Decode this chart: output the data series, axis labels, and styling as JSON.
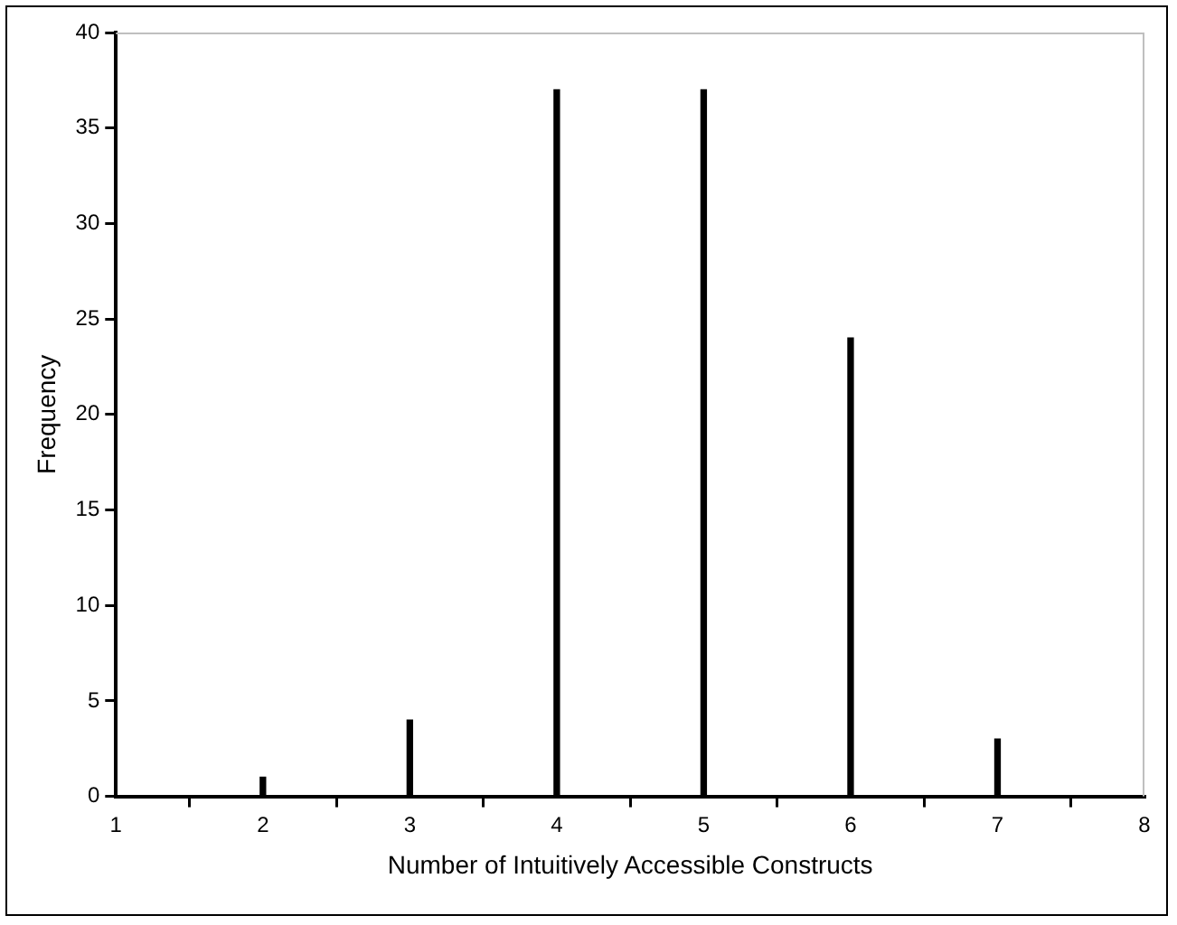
{
  "chart_data": {
    "type": "bar",
    "xlabel": "Number of Intuitively Accessible Constructs",
    "ylabel": "Frequency",
    "x": [
      2,
      3,
      4,
      5,
      6,
      7
    ],
    "values": [
      1,
      4,
      37,
      37,
      24,
      3
    ],
    "color": "#000000",
    "xlim": [
      1,
      8
    ],
    "xticks": [
      1,
      2,
      3,
      4,
      5,
      6,
      7,
      8
    ],
    "ylim": [
      0,
      40
    ],
    "yticks": [
      0,
      5,
      10,
      15,
      20,
      25,
      30,
      35,
      40
    ],
    "grid": false,
    "legend": false
  }
}
